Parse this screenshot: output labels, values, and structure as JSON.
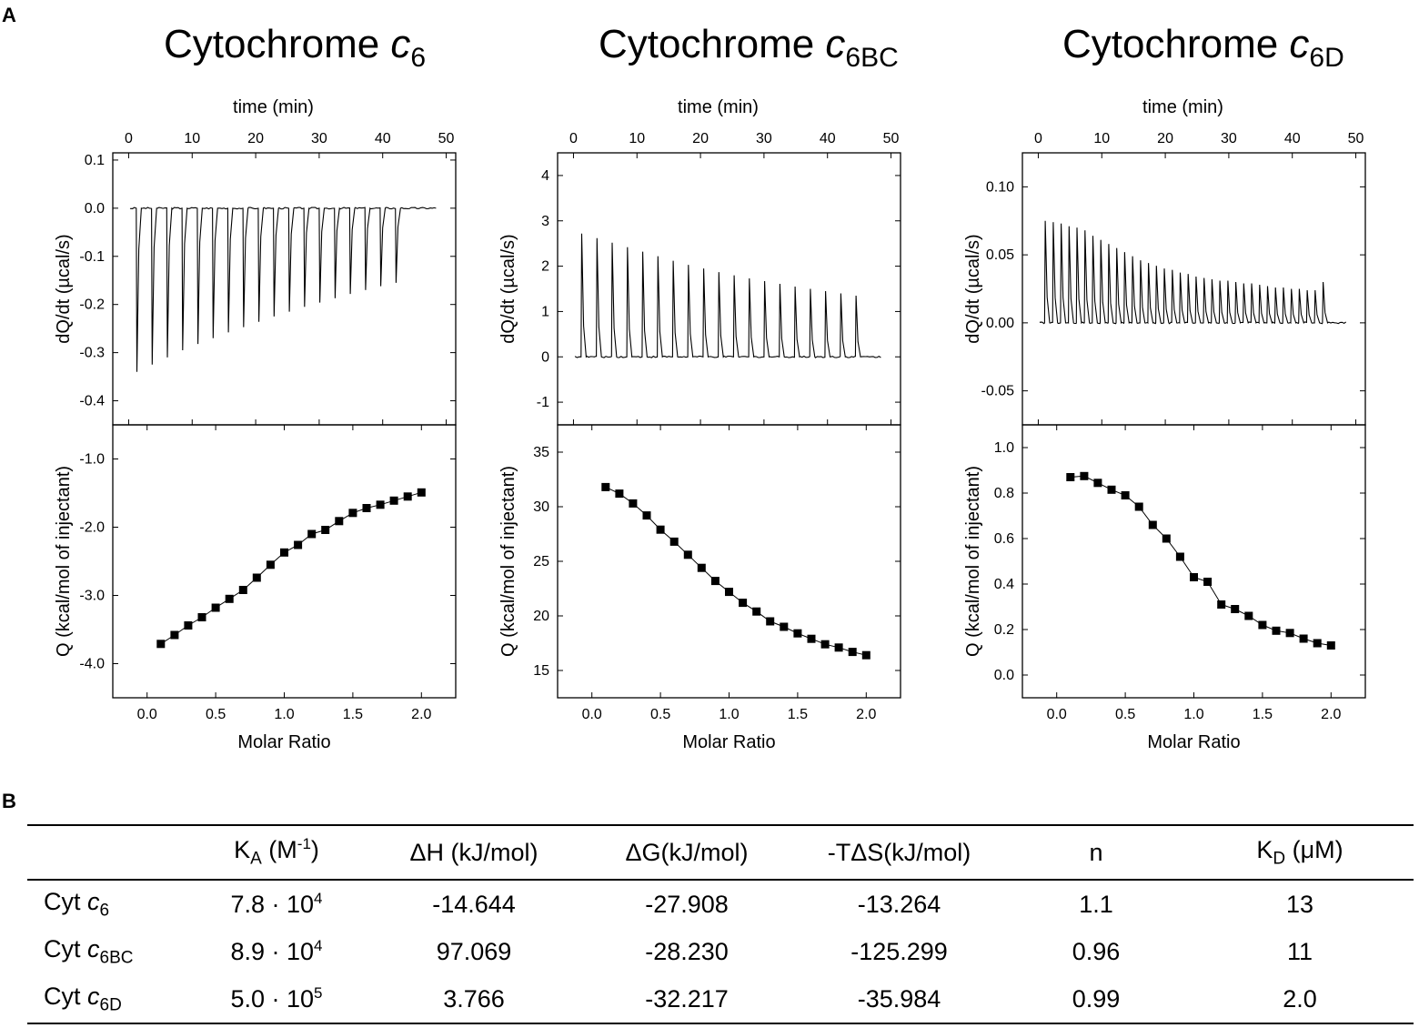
{
  "panel_a_label": "A",
  "panel_b_label": "B",
  "chart_data": [
    {
      "type": "line",
      "title": {
        "main": "Cytochrome ",
        "italic": "c",
        "sub": "6"
      },
      "top_xlabel": "time (min)",
      "top_xticks": [
        0,
        10,
        20,
        30,
        40,
        50
      ],
      "top_xlim": [
        -2.5,
        51.5
      ],
      "top_ylabel": "dQ/dt (µcal/s)",
      "top_ylim": [
        -0.45,
        0.115
      ],
      "top_yticks": [
        "0.1",
        "0.0",
        "-0.1",
        "-0.2",
        "-0.3",
        "-0.4"
      ],
      "top_ytick_values": [
        0.1,
        0.0,
        -0.1,
        -0.2,
        -0.3,
        -0.4
      ],
      "baseline": 0,
      "injection_start_min": 1.2,
      "injection_interval_min": 2.4,
      "trace_end_min": 48.5,
      "injection_peaks": [
        -0.34,
        -0.325,
        -0.31,
        -0.295,
        -0.282,
        -0.27,
        -0.258,
        -0.247,
        -0.236,
        -0.225,
        -0.215,
        -0.205,
        -0.196,
        -0.187,
        -0.178,
        -0.17,
        -0.162,
        -0.155
      ],
      "xlabel": "Molar Ratio",
      "xlim": [
        -0.25,
        2.25
      ],
      "xticks": [
        "0.0",
        "0.5",
        "1.0",
        "1.5",
        "2.0"
      ],
      "xtick_values": [
        0,
        0.5,
        1.0,
        1.5,
        2.0
      ],
      "ylabel": "Q (kcal/mol of injectant)",
      "ylim": [
        -4.5,
        -0.5
      ],
      "yticks": [
        "-1.0",
        "-2.0",
        "-3.0",
        "-4.0"
      ],
      "ytick_values": [
        -1.0,
        -2.0,
        -3.0,
        -4.0
      ],
      "x": [
        0.1,
        0.2,
        0.3,
        0.4,
        0.5,
        0.6,
        0.7,
        0.8,
        0.9,
        1.0,
        1.1,
        1.2,
        1.3,
        1.4,
        1.5,
        1.6,
        1.7,
        1.8,
        1.9,
        2.0
      ],
      "y": [
        -3.71,
        -3.58,
        -3.44,
        -3.32,
        -3.18,
        -3.05,
        -2.92,
        -2.74,
        -2.55,
        -2.37,
        -2.26,
        -2.1,
        -2.04,
        -1.91,
        -1.79,
        -1.72,
        -1.67,
        -1.61,
        -1.55,
        -1.49
      ]
    },
    {
      "type": "line",
      "title": {
        "main": "Cytochrome ",
        "italic": "c",
        "sub": "6BC"
      },
      "top_xlabel": "time (min)",
      "top_xticks": [
        0,
        10,
        20,
        30,
        40,
        50
      ],
      "top_xlim": [
        -2.5,
        51.5
      ],
      "top_ylabel": "dQ/dt (µcal/s)",
      "top_ylim": [
        -1.5,
        4.5
      ],
      "top_yticks": [
        "4",
        "3",
        "2",
        "1",
        "0",
        "-1"
      ],
      "top_ytick_values": [
        4,
        3,
        2,
        1,
        0,
        -1
      ],
      "baseline": 0,
      "injection_start_min": 1.2,
      "injection_interval_min": 2.4,
      "trace_end_min": 48.5,
      "injection_peaks": [
        2.72,
        2.62,
        2.52,
        2.42,
        2.32,
        2.22,
        2.12,
        2.03,
        1.95,
        1.87,
        1.8,
        1.73,
        1.67,
        1.61,
        1.55,
        1.5,
        1.45,
        1.4,
        1.35
      ],
      "xlabel": "Molar Ratio",
      "xlim": [
        -0.25,
        2.25
      ],
      "xticks": [
        "0.0",
        "0.5",
        "1.0",
        "1.5",
        "2.0"
      ],
      "xtick_values": [
        0,
        0.5,
        1.0,
        1.5,
        2.0
      ],
      "ylabel": "Q (kcal/mol of injectant)",
      "ylim": [
        12.5,
        37.5
      ],
      "yticks": [
        "35",
        "30",
        "25",
        "20",
        "15"
      ],
      "ytick_values": [
        35,
        30,
        25,
        20,
        15
      ],
      "x": [
        0.1,
        0.2,
        0.3,
        0.4,
        0.5,
        0.6,
        0.7,
        0.8,
        0.9,
        1.0,
        1.1,
        1.2,
        1.3,
        1.4,
        1.5,
        1.6,
        1.7,
        1.8,
        1.9,
        2.0
      ],
      "y": [
        31.8,
        31.2,
        30.3,
        29.2,
        27.9,
        26.8,
        25.6,
        24.4,
        23.2,
        22.2,
        21.2,
        20.4,
        19.5,
        19.0,
        18.4,
        17.9,
        17.4,
        17.1,
        16.7,
        16.4
      ]
    },
    {
      "type": "line",
      "title": {
        "main": "Cytochrome ",
        "italic": "c",
        "sub": "6D"
      },
      "top_xlabel": "time (min)",
      "top_xticks": [
        0,
        10,
        20,
        30,
        40,
        50
      ],
      "top_xlim": [
        -2.5,
        51.5
      ],
      "top_ylabel": "dQ/dt (µcal/s)",
      "top_ylim": [
        -0.075,
        0.125
      ],
      "top_yticks": [
        "0.10",
        "0.05",
        "0.00",
        "-0.05"
      ],
      "top_ytick_values": [
        0.1,
        0.05,
        0.0,
        -0.05
      ],
      "baseline": 0,
      "injection_start_min": 1.0,
      "injection_interval_min": 2.4,
      "trace_end_min": 48.5,
      "injection_peaks": [
        0.075,
        0.074,
        0.073,
        0.071,
        0.07,
        0.068,
        0.064,
        0.061,
        0.058,
        0.055,
        0.052,
        0.049,
        0.046,
        0.044,
        0.042,
        0.04,
        0.039,
        0.037,
        0.036,
        0.034,
        0.033,
        0.032,
        0.031,
        0.031,
        0.03,
        0.029,
        0.029,
        0.028,
        0.027,
        0.026,
        0.026,
        0.025,
        0.025,
        0.024,
        0.024,
        0.03
      ],
      "injection_interval_min_override": 1.25,
      "xlabel": "Molar Ratio",
      "xlim": [
        -0.25,
        2.25
      ],
      "xticks": [
        "0.0",
        "0.5",
        "1.0",
        "1.5",
        "2.0"
      ],
      "xtick_values": [
        0,
        0.5,
        1.0,
        1.5,
        2.0
      ],
      "ylabel": "Q (kcal/mol of injectant)",
      "ylim": [
        -0.1,
        1.1
      ],
      "yticks": [
        "1.0",
        "0.8",
        "0.6",
        "0.4",
        "0.2",
        "0.0"
      ],
      "ytick_values": [
        1.0,
        0.8,
        0.6,
        0.4,
        0.2,
        0.0
      ],
      "x": [
        0.1,
        0.2,
        0.3,
        0.4,
        0.5,
        0.6,
        0.7,
        0.8,
        0.9,
        1.0,
        1.1,
        1.2,
        1.3,
        1.4,
        1.5,
        1.6,
        1.7,
        1.8,
        1.9,
        2.0
      ],
      "y": [
        0.87,
        0.875,
        0.845,
        0.815,
        0.79,
        0.74,
        0.66,
        0.6,
        0.52,
        0.43,
        0.41,
        0.31,
        0.29,
        0.26,
        0.22,
        0.195,
        0.185,
        0.16,
        0.14,
        0.13
      ]
    }
  ],
  "table": {
    "headers": [
      {
        "pre": "",
        "sub": "",
        "mid": "",
        "sup": "",
        "post": ""
      },
      {
        "pre": "K",
        "sub": "A",
        "mid": " (M",
        "sup": "-1",
        "post": ")"
      },
      {
        "pre": "ΔH (kJ/mol)",
        "sub": "",
        "mid": "",
        "sup": "",
        "post": ""
      },
      {
        "pre": "ΔG(kJ/mol)",
        "sub": "",
        "mid": "",
        "sup": "",
        "post": ""
      },
      {
        "pre": "-TΔS(kJ/mol)",
        "sub": "",
        "mid": "",
        "sup": "",
        "post": ""
      },
      {
        "pre": "n",
        "sub": "",
        "mid": "",
        "sup": "",
        "post": ""
      },
      {
        "pre": "K",
        "sub": "D",
        "mid": " (μM)",
        "sup": "",
        "post": ""
      }
    ],
    "rows": [
      {
        "label": "Cyt ",
        "label_it": "c",
        "label_sub": "6",
        "ka": "7.8 · 10",
        "ka_exp": "4",
        "dh": "-14.644",
        "dg": "-27.908",
        "tds": "-13.264",
        "n": "1.1",
        "kd": "13"
      },
      {
        "label": "Cyt ",
        "label_it": "c",
        "label_sub": "6BC",
        "ka": "8.9 · 10",
        "ka_exp": "4",
        "dh": "97.069",
        "dg": "-28.230",
        "tds": "-125.299",
        "n": "0.96",
        "kd": "11"
      },
      {
        "label": "Cyt ",
        "label_it": "c",
        "label_sub": "6D",
        "ka": "5.0 · 10",
        "ka_exp": "5",
        "dh": "3.766",
        "dg": "-32.217",
        "tds": "-35.984",
        "n": "0.99",
        "kd": "2.0"
      }
    ]
  }
}
